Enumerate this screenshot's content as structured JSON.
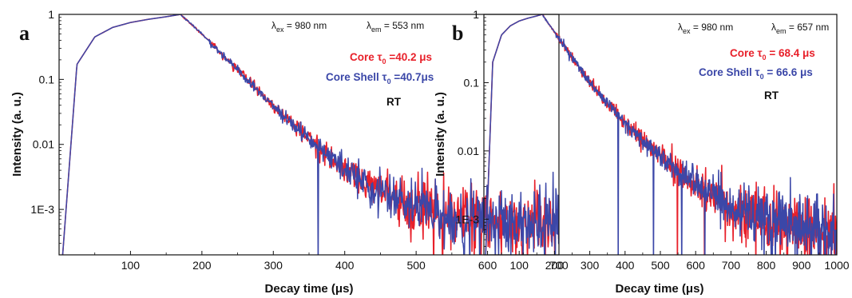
{
  "chart_data": [
    {
      "panel": "a",
      "type": "line",
      "xlabel": "Decay time (μs)",
      "ylabel": "Intensity (a. u.)",
      "xlim": [
        0,
        700
      ],
      "ylim": [
        0.0002,
        1
      ],
      "yscale": "log",
      "x_ticks": [
        100,
        200,
        300,
        400,
        500,
        600,
        700
      ],
      "x_tick_labels": [
        "100",
        "200",
        "300",
        "400",
        "500",
        "600",
        "700"
      ],
      "y_ticks": [
        1,
        0.1,
        0.01,
        0.001
      ],
      "y_tick_labels": [
        "1",
        "0.1",
        "0.01",
        "1E-3"
      ],
      "annotations": {
        "excitation": {
          "symbol": "λ",
          "sub": "ex",
          "text": " = 980 nm"
        },
        "emission": {
          "symbol": "λ",
          "sub": "em",
          "text": " = 553 nm"
        },
        "core": {
          "prefix": "Core ",
          "symbol": "τ",
          "sub": "0",
          "text": " =40.2 μs"
        },
        "core_shell": {
          "prefix": "Core Shell ",
          "symbol": "τ",
          "sub": "0",
          "text": " =40.7μs"
        },
        "temperature": "RT"
      },
      "series": [
        {
          "name": "Core",
          "color": "#e8202a",
          "peak_x": 170,
          "tau": 40.2,
          "rise": 45,
          "x": [
            5,
            25,
            50,
            75,
            100,
            125,
            150,
            170,
            200,
            250,
            300,
            350,
            400,
            450,
            500,
            550,
            600,
            650,
            700
          ],
          "y": [
            0.0002,
            0.17,
            0.45,
            0.63,
            0.75,
            0.84,
            0.92,
            1.0,
            0.5,
            0.14,
            0.038,
            0.012,
            0.0042,
            0.0019,
            0.001,
            0.0008,
            0.0007,
            0.0006,
            0.0006
          ]
        },
        {
          "name": "Core Shell",
          "color": "#3b47a8",
          "peak_x": 170,
          "tau": 40.7,
          "rise": 45,
          "x": [
            5,
            25,
            50,
            75,
            100,
            125,
            150,
            170,
            200,
            250,
            300,
            350,
            400,
            450,
            500,
            550,
            600,
            650,
            700
          ],
          "y": [
            0.0002,
            0.17,
            0.45,
            0.63,
            0.75,
            0.84,
            0.92,
            1.0,
            0.5,
            0.14,
            0.038,
            0.012,
            0.0042,
            0.0019,
            0.001,
            0.0008,
            0.0007,
            0.0006,
            0.0006
          ]
        }
      ]
    },
    {
      "panel": "b",
      "type": "line",
      "xlabel": "Decay time (μs)",
      "ylabel": "Intensity (a. u.)",
      "xlim": [
        0,
        1000
      ],
      "ylim": [
        0.0003,
        1
      ],
      "yscale": "log",
      "x_ticks": [
        100,
        200,
        300,
        400,
        500,
        600,
        700,
        800,
        900,
        1000
      ],
      "x_tick_labels": [
        "100",
        "200",
        "300",
        "400",
        "500",
        "600",
        "700",
        "800",
        "900",
        "1000"
      ],
      "y_ticks": [
        1,
        0.1,
        0.01,
        0.001
      ],
      "y_tick_labels": [
        "1",
        "0.1",
        "0.01",
        "1E-3"
      ],
      "annotations": {
        "excitation": {
          "symbol": "λ",
          "sub": "ex",
          "text": " = 980 nm"
        },
        "emission": {
          "symbol": "λ",
          "sub": "em",
          "text": " = 657 nm"
        },
        "core": {
          "prefix": "Core ",
          "symbol": "τ",
          "sub": "0",
          "text": " = 68.4 μs"
        },
        "core_shell": {
          "prefix": "Core Shell ",
          "symbol": "τ",
          "sub": "0",
          "text": " = 66.6 μs"
        },
        "temperature": "RT"
      },
      "series": [
        {
          "name": "Core",
          "color": "#e8202a",
          "peak_x": 165,
          "tau": 68.4,
          "rise": 55,
          "x": [
            5,
            25,
            50,
            75,
            100,
            125,
            150,
            165,
            200,
            300,
            400,
            500,
            600,
            700,
            800,
            900,
            1000
          ],
          "y": [
            0.0003,
            0.2,
            0.5,
            0.68,
            0.8,
            0.88,
            0.95,
            1.0,
            0.55,
            0.1,
            0.025,
            0.0085,
            0.0032,
            0.0015,
            0.0009,
            0.0007,
            0.0006
          ]
        },
        {
          "name": "Core Shell",
          "color": "#3b47a8",
          "peak_x": 165,
          "tau": 66.6,
          "rise": 55,
          "x": [
            5,
            25,
            50,
            75,
            100,
            125,
            150,
            165,
            200,
            300,
            400,
            500,
            600,
            700,
            800,
            900,
            1000
          ],
          "y": [
            0.0003,
            0.2,
            0.5,
            0.68,
            0.8,
            0.88,
            0.95,
            1.0,
            0.55,
            0.1,
            0.025,
            0.0085,
            0.0032,
            0.0015,
            0.0009,
            0.0007,
            0.0006
          ]
        }
      ]
    }
  ]
}
